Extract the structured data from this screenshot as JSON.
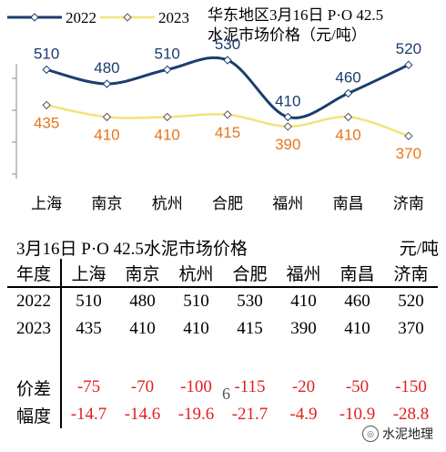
{
  "chart_data": {
    "type": "line",
    "title": "华东地区3月16日 P·O 42.5",
    "subtitle": "水泥市场价格（元/吨）",
    "categories": [
      "上海",
      "南京",
      "杭州",
      "合肥",
      "福州",
      "南昌",
      "济南"
    ],
    "series": [
      {
        "name": "2022",
        "values": [
          510,
          480,
          510,
          530,
          410,
          460,
          520
        ],
        "color": "#1b3d6e",
        "marker": "diamond"
      },
      {
        "name": "2023",
        "values": [
          435,
          410,
          410,
          415,
          390,
          410,
          370
        ],
        "color": "#f5e27a",
        "marker": "diamond"
      }
    ],
    "label_colors": {
      "2022": "#1b3d6e",
      "2023": "#e8751a"
    },
    "ylim": [
      280,
      580
    ],
    "grid": false,
    "legend": "top-left"
  },
  "table": {
    "title": "3月16日 P·O 42.5水泥市场价格",
    "unit": "元/吨",
    "corner": "年度",
    "columns": [
      "上海",
      "南京",
      "杭州",
      "合肥",
      "福州",
      "南昌",
      "济南"
    ],
    "rows": [
      {
        "label": "2022",
        "values": [
          "510",
          "480",
          "510",
          "530",
          "410",
          "460",
          "520"
        ],
        "negative": false
      },
      {
        "label": "2023",
        "values": [
          "435",
          "410",
          "410",
          "415",
          "390",
          "410",
          "370"
        ],
        "negative": false
      },
      {
        "label": "价差",
        "values": [
          "-75",
          "-70",
          "-100",
          "-115",
          "-20",
          "-50",
          "-150"
        ],
        "negative": true
      },
      {
        "label": "幅度",
        "values": [
          "-14.7",
          "-14.6",
          "-19.6",
          "-21.7",
          "-4.9",
          "-10.9",
          "-28.8"
        ],
        "negative": true
      }
    ],
    "negative_color": "#e02020"
  },
  "page_number": "6",
  "watermark": "水泥地理"
}
